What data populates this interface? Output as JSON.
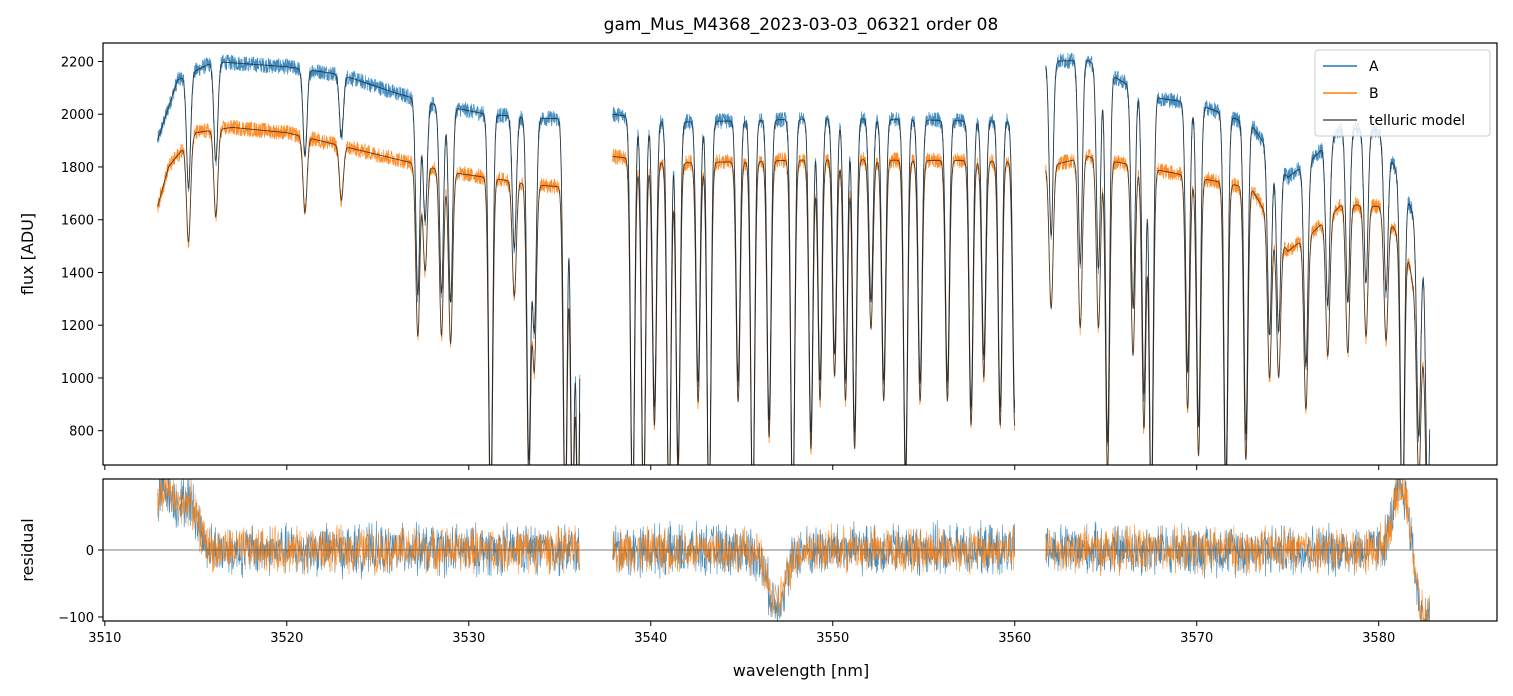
{
  "chart_data": [
    {
      "type": "line",
      "panel": "main",
      "title": "gam_Mus_M4368_2023-03-03_06321  order 08",
      "xlabel": "",
      "ylabel": "flux [ADU]",
      "xlim": [
        3509.9,
        3586.5
      ],
      "ylim": [
        670,
        2270
      ],
      "x_ticks": [
        3510,
        3520,
        3530,
        3540,
        3550,
        3560,
        3570,
        3580
      ],
      "y_ticks": [
        800,
        1000,
        1200,
        1400,
        1600,
        1800,
        2000,
        2200
      ],
      "y_tick_labels": [
        "800",
        "1000",
        "1200",
        "1400",
        "1600",
        "1800",
        "2000",
        "2200"
      ],
      "legend": {
        "placement": "top-right"
      },
      "segments": [
        [
          3512.9,
          3536.1
        ],
        [
          3537.9,
          3560.0
        ],
        [
          3561.7,
          3582.8
        ]
      ],
      "series": [
        {
          "name": "A",
          "color": "#1f77b4",
          "continuum": [
            [
              3512.9,
              1900
            ],
            [
              3514,
              2130
            ],
            [
              3516,
              2200
            ],
            [
              3518,
              2190
            ],
            [
              3520,
              2180
            ],
            [
              3523,
              2150
            ],
            [
              3526,
              2080
            ],
            [
              3528,
              2040
            ],
            [
              3531,
              2000
            ],
            [
              3534,
              1985
            ],
            [
              3536.1,
              1980
            ],
            [
              3537.9,
              2000
            ],
            [
              3541,
              1970
            ],
            [
              3545,
              1975
            ],
            [
              3550,
              1985
            ],
            [
              3554,
              1980
            ],
            [
              3557,
              1975
            ],
            [
              3560,
              1975
            ],
            [
              3561.7,
              2200
            ],
            [
              3564,
              2205
            ],
            [
              3566,
              2120
            ],
            [
              3568,
              2060
            ],
            [
              3570,
              2040
            ],
            [
              3573,
              1960
            ],
            [
              3575,
              1760
            ],
            [
              3576.5,
              1840
            ],
            [
              3578,
              1950
            ],
            [
              3580,
              1940
            ],
            [
              3581.5,
              1700
            ],
            [
              3582.8,
              1430
            ]
          ],
          "absorption_lines": [
            [
              3514.6,
              1600
            ],
            [
              3516.1,
              1660
            ],
            [
              3521,
              1700
            ],
            [
              3523,
              1780
            ],
            [
              3527.2,
              1280
            ],
            [
              3527.6,
              1560
            ],
            [
              3528.5,
              1300
            ],
            [
              3529,
              1270
            ],
            [
              3531.2,
              500
            ],
            [
              3532.5,
              1500
            ],
            [
              3533.3,
              700
            ],
            [
              3533.6,
              1200
            ],
            [
              3535.3,
              500
            ],
            [
              3535.7,
              500
            ],
            [
              3536,
              500
            ],
            [
              3539,
              500
            ],
            [
              3539.6,
              500
            ],
            [
              3540.2,
              900
            ],
            [
              3541,
              500
            ],
            [
              3541.5,
              700
            ],
            [
              3542.6,
              1000
            ],
            [
              3543.2,
              500
            ],
            [
              3544.8,
              1000
            ],
            [
              3545.6,
              500
            ],
            [
              3546.5,
              850
            ],
            [
              3547.8,
              500
            ],
            [
              3548.8,
              800
            ],
            [
              3549.3,
              1000
            ],
            [
              3550.1,
              1100
            ],
            [
              3550.7,
              1000
            ],
            [
              3551.2,
              800
            ],
            [
              3552.1,
              1300
            ],
            [
              3552.8,
              1000
            ],
            [
              3554,
              650
            ],
            [
              3554.8,
              1000
            ],
            [
              3556.3,
              1000
            ],
            [
              3557.6,
              900
            ],
            [
              3558.3,
              1100
            ],
            [
              3559.2,
              900
            ],
            [
              3560,
              900
            ],
            [
              3562,
              1400
            ],
            [
              3563.6,
              1300
            ],
            [
              3564.6,
              1300
            ],
            [
              3565.1,
              700
            ],
            [
              3566.5,
              1200
            ],
            [
              3567.1,
              900
            ],
            [
              3567.5,
              500
            ],
            [
              3569.5,
              1000
            ],
            [
              3570.1,
              800
            ],
            [
              3571.6,
              600
            ],
            [
              3572.7,
              800
            ],
            [
              3574,
              1250
            ],
            [
              3574.5,
              1300
            ],
            [
              3576,
              1150
            ],
            [
              3577.2,
              1350
            ],
            [
              3578.3,
              1320
            ],
            [
              3579.3,
              1400
            ],
            [
              3580.4,
              1420
            ],
            [
              3581.3,
              500
            ],
            [
              3582.2,
              1000
            ],
            [
              3582.7,
              680
            ]
          ]
        },
        {
          "name": "B",
          "color": "#ff7f0e",
          "continuum": [
            [
              3512.9,
              1650
            ],
            [
              3513.5,
              1800
            ],
            [
              3515,
              1930
            ],
            [
              3517,
              1950
            ],
            [
              3520,
              1930
            ],
            [
              3523,
              1880
            ],
            [
              3526,
              1830
            ],
            [
              3529,
              1780
            ],
            [
              3532,
              1750
            ],
            [
              3534,
              1730
            ],
            [
              3536.1,
              1720
            ],
            [
              3537.9,
              1840
            ],
            [
              3541,
              1815
            ],
            [
              3545,
              1820
            ],
            [
              3550,
              1830
            ],
            [
              3554,
              1825
            ],
            [
              3557,
              1825
            ],
            [
              3560,
              1820
            ],
            [
              3561.7,
              1800
            ],
            [
              3564,
              1840
            ],
            [
              3567,
              1800
            ],
            [
              3570,
              1760
            ],
            [
              3573,
              1720
            ],
            [
              3575,
              1480
            ],
            [
              3576.5,
              1560
            ],
            [
              3578,
              1660
            ],
            [
              3580,
              1650
            ],
            [
              3581.5,
              1500
            ],
            [
              3582.8,
              1000
            ]
          ]
        },
        {
          "name": "telluric model",
          "color": "#555555"
        }
      ]
    },
    {
      "type": "line",
      "panel": "residual",
      "xlabel": "wavelength [nm]",
      "ylabel": "residual",
      "xlim": [
        3509.9,
        3586.5
      ],
      "ylim": [
        -106,
        106
      ],
      "x_ticks": [
        3510,
        3520,
        3530,
        3540,
        3550,
        3560,
        3570,
        3580
      ],
      "x_tick_labels": [
        "3510",
        "3520",
        "3530",
        "3540",
        "3550",
        "3560",
        "3570",
        "3580"
      ],
      "y_ticks": [
        -100,
        0
      ],
      "y_tick_labels": [
        "−100",
        "0"
      ],
      "reference_line": 0,
      "series": [
        {
          "name": "A",
          "color": "#1f77b4",
          "noise_amplitude": 45
        },
        {
          "name": "B",
          "color": "#ff7f0e",
          "noise_amplitude": 40
        }
      ],
      "features": [
        [
          3513.3,
          90
        ],
        [
          3514.6,
          70
        ],
        [
          3546.9,
          -80
        ],
        [
          3581.3,
          95
        ],
        [
          3582.5,
          -110
        ]
      ]
    }
  ]
}
